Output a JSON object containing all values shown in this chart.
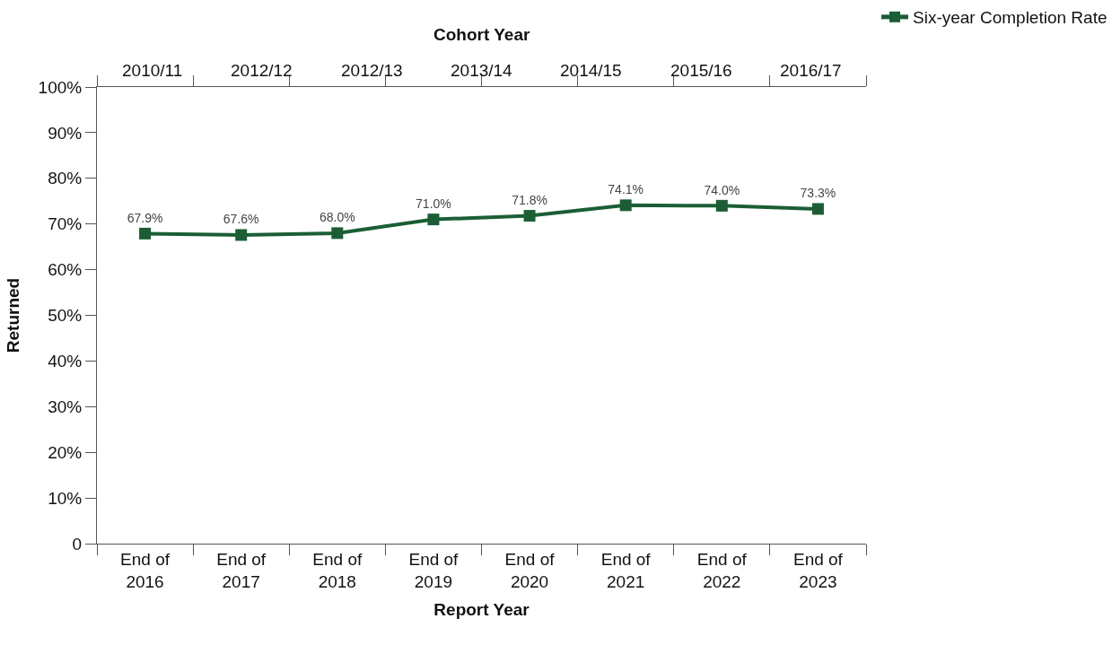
{
  "chart_data": {
    "type": "line",
    "xlabel": "Report Year",
    "ylabel": "Returned",
    "x2label": "Cohort Year",
    "categories": [
      "End of 2016",
      "End of 2017",
      "End of 2018",
      "End of 2019",
      "End of 2020",
      "End of 2021",
      "End of 2022",
      "End of 2023"
    ],
    "series": [
      {
        "name": "Six-year Completion Rate",
        "color": "#1b5e35",
        "values": [
          67.9,
          67.6,
          68.0,
          71.0,
          71.8,
          74.1,
          74.0,
          73.3
        ],
        "value_labels": [
          "67.9%",
          "67.6%",
          "68.0%",
          "71.0%",
          "71.8%",
          "74.1%",
          "74.0%",
          "73.3%"
        ]
      }
    ],
    "ylim": [
      0,
      100
    ],
    "yticks": [
      {
        "value": 0,
        "label": "0"
      },
      {
        "value": 10,
        "label": "10%"
      },
      {
        "value": 20,
        "label": "20%"
      },
      {
        "value": 30,
        "label": "30%"
      },
      {
        "value": 40,
        "label": "40%"
      },
      {
        "value": 50,
        "label": "50%"
      },
      {
        "value": 60,
        "label": "60%"
      },
      {
        "value": 70,
        "label": "70%"
      },
      {
        "value": 80,
        "label": "80%"
      },
      {
        "value": 90,
        "label": "90%"
      },
      {
        "value": 100,
        "label": "100%"
      }
    ],
    "annotations": [
      "2010/11",
      "2012/12",
      "2012/13",
      "2013/14",
      "2014/15",
      "2015/16",
      "2016/17"
    ],
    "marker": "square",
    "line_style": "solid",
    "legend": "top right"
  }
}
